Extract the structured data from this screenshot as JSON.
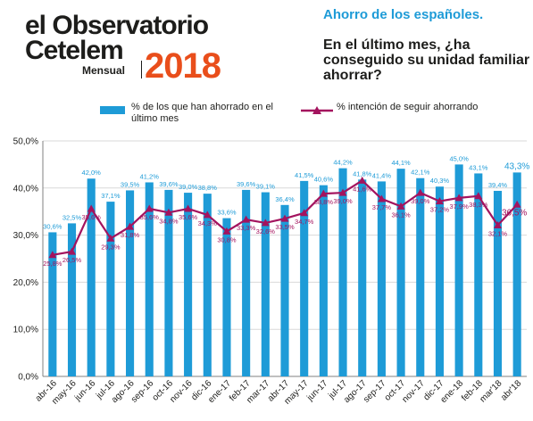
{
  "logo": {
    "line1": "el Observatorio",
    "line2": "Cetelem",
    "sub": "Mensual",
    "year": "2018"
  },
  "question": {
    "title": "Ahorro de los españoles.",
    "text": "En el último mes, ¿ha conseguido su unidad familiar ahorrar?"
  },
  "colors": {
    "bar": "#1e9bd7",
    "line": "#a3135e",
    "accent": "#e94e1b"
  },
  "chart_data": {
    "type": "bar",
    "categories": [
      "abr-16",
      "may-16",
      "jun-16",
      "jul-16",
      "ago-16",
      "sep-16",
      "oct-16",
      "nov-16",
      "dic-16",
      "ene-17",
      "feb-17",
      "mar-17",
      "abr-17",
      "may-17",
      "jun-17",
      "jul-17",
      "ago-17",
      "sep-17",
      "oct-17",
      "nov-17",
      "dic-17",
      "ene-18",
      "feb-18",
      "mar'18",
      "abr'18"
    ],
    "series": [
      {
        "name": "% de los que han ahorrado en el último mes",
        "type": "bar",
        "values": [
          30.6,
          32.5,
          42.0,
          37.1,
          39.5,
          41.2,
          39.6,
          39.0,
          38.8,
          33.6,
          39.6,
          39.1,
          36.4,
          41.5,
          40.6,
          44.2,
          41.8,
          41.4,
          44.1,
          42.1,
          40.3,
          45.0,
          43.1,
          39.4,
          43.3
        ],
        "labels": [
          "30,6%",
          "32,5%",
          "42,0%",
          "37,1%",
          "39,5%",
          "41,2%",
          "39,6%",
          "39,0%",
          "38,8%",
          "33,6%",
          "39,6%",
          "39,1%",
          "36,4%",
          "41,5%",
          "40,6%",
          "44,2%",
          "41,8%",
          "41,4%",
          "44,1%",
          "42,1%",
          "40,3%",
          "45,0%",
          "43,1%",
          "39,4%",
          "43,3%"
        ]
      },
      {
        "name": "% intención de seguir ahorrando",
        "type": "line",
        "values": [
          25.8,
          26.5,
          35.6,
          29.3,
          31.8,
          35.6,
          34.8,
          35.6,
          34.3,
          30.8,
          33.3,
          32.6,
          33.5,
          34.7,
          38.8,
          39.0,
          41.6,
          37.7,
          36.1,
          39.0,
          37.2,
          37.9,
          38.3,
          32.1,
          36.5
        ],
        "labels": [
          "25,8%",
          "26,5%",
          "35,6%",
          "29,3%",
          "31,8%",
          "35,6%",
          "34,8%",
          "35,6%",
          "34,3%",
          "30,8%",
          "33,3%",
          "32,6%",
          "33,5%",
          "34,7%",
          "38,8%",
          "39,0%",
          "41,6%",
          "37,7%",
          "36,1%",
          "39,0%",
          "37,2%",
          "37,9%",
          "38,3%",
          "32,1%",
          "36,5%"
        ]
      }
    ],
    "ylim": [
      0,
      50
    ],
    "yticks": [
      "0,0%",
      "10,0%",
      "20,0%",
      "30,0%",
      "40,0%",
      "50,0%"
    ],
    "grid": true,
    "legend": "top"
  }
}
